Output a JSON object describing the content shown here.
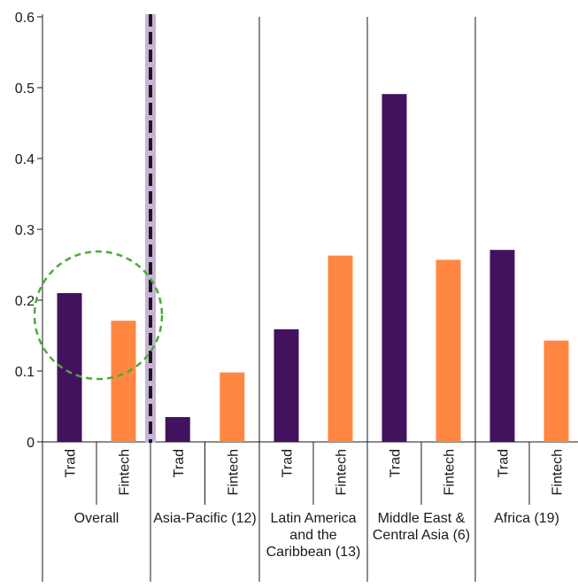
{
  "chart_data": {
    "type": "bar",
    "title": "",
    "xlabel": "",
    "ylabel": "",
    "ylim": [
      0,
      0.6
    ],
    "yticks": [
      "0",
      "0.1",
      "0.2",
      "0.3",
      "0.4",
      "0.5",
      "0.6"
    ],
    "grid": false,
    "legend": "none",
    "bar_labels": [
      "Trad",
      "Fintech"
    ],
    "colors": {
      "trad": "#43125f",
      "fintech": "#ff8742",
      "divider": "#c8b4d8",
      "circle": "#4caa3c"
    },
    "groups": [
      {
        "label": "Overall",
        "values": [
          0.21,
          0.171
        ]
      },
      {
        "label": "Asia-Pacific (12)",
        "values": [
          0.035,
          0.098
        ]
      },
      {
        "label": "Latin America and the Caribbean (13)",
        "values": [
          0.159,
          0.263
        ]
      },
      {
        "label": "Middle East & Central Asia (6)",
        "values": [
          0.491,
          0.257
        ]
      },
      {
        "label": "Africa (19)",
        "values": [
          0.271,
          0.143
        ]
      }
    ]
  }
}
